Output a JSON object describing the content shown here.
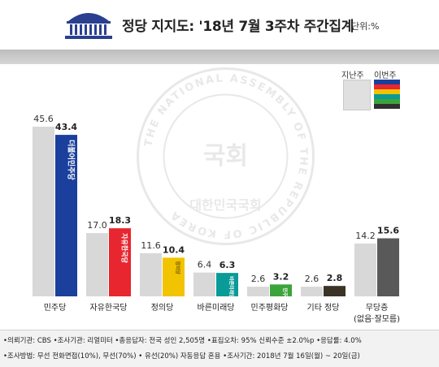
{
  "header": {
    "title": "정당 지지도: '18년 7월 3주차 주간집계",
    "unit": "단위:%"
  },
  "legend": {
    "prev_label": "지난주",
    "cur_label": "이번주",
    "cur_swatch_colors": [
      "#1a3f9c",
      "#e8262f",
      "#f2c300",
      "#0a9a97",
      "#3ba43b",
      "#2f2f2f"
    ]
  },
  "watermark": {
    "ring_text": "THE NATIONAL ASSEMBLY OF THE REPUBLIC OF KOREA",
    "bottom_text": "대한민국국회",
    "center_text": "국회"
  },
  "bar_labels": {
    "minju": "더불어민주당",
    "jayu": "자유한국당",
    "jeongui": "정의당",
    "bareun": "바른미래당",
    "minpyeong": "민주평화당"
  },
  "chart_data": {
    "type": "bar",
    "categories": [
      "민주당",
      "자유한국당",
      "정의당",
      "바른미래당",
      "민주평화당",
      "기타 정당",
      "무당층\n(없음·잘모름)"
    ],
    "series": [
      {
        "name": "지난주",
        "values": [
          45.6,
          17.0,
          11.6,
          6.4,
          2.6,
          2.6,
          14.2
        ],
        "color": "#d8d8d8"
      },
      {
        "name": "이번주",
        "values": [
          43.4,
          18.3,
          10.4,
          6.3,
          3.2,
          2.8,
          15.6
        ],
        "colors": [
          "#1a3f9c",
          "#e8262f",
          "#f2c300",
          "#0a9a97",
          "#3ba43b",
          "#3b3326",
          "#595959"
        ]
      }
    ],
    "ylim": [
      0,
      50
    ],
    "grid": false,
    "legend_position": "top-right"
  },
  "footer": {
    "line1": "•의뢰기관: CBS  •조사기관: 리얼미터  •총응답자: 전국 성인 2,505명  •표집오차: 95% 신뢰수준 ±2.0%p  •응답률: 4.0%",
    "line2": "•조사방법: 무선 전화면접(10%),  무선(70%) • 유선(20%) 자동응답 혼용  •조사기간: 2018년 7월 16일(월) ~ 20일(금)"
  }
}
